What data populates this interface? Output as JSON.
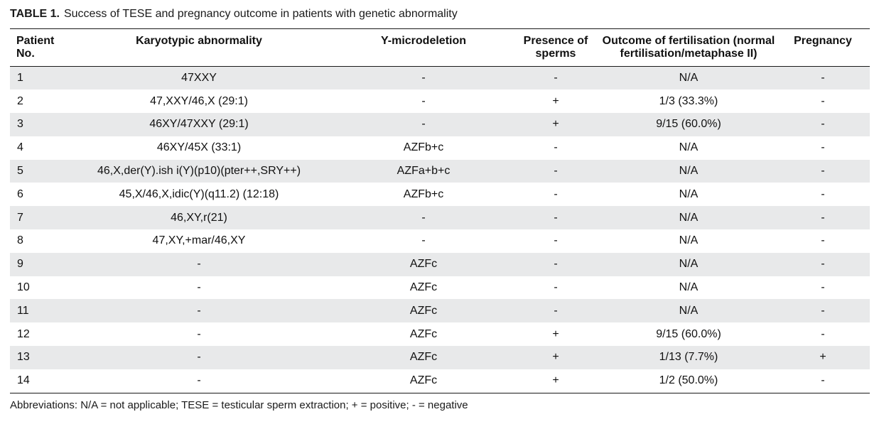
{
  "caption": {
    "label": "TABLE 1.",
    "text": "Success of TESE and pregnancy outcome in patients with genetic abnormality"
  },
  "headers": {
    "patient_line1": "Patient",
    "patient_line2": "No.",
    "karyotype": "Karyotypic abnormality",
    "ymicro": "Y-microdeletion",
    "sperm_line1": "Presence of",
    "sperm_line2": "sperms",
    "outcome_line1": "Outcome of fertilisation (normal",
    "outcome_line2": "fertilisation/metaphase II)",
    "pregnancy": "Pregnancy"
  },
  "rows": [
    {
      "no": "1",
      "karyotype": "47XXY",
      "ymicro": "-",
      "sperm": "-",
      "outcome": "N/A",
      "pregnancy": "-"
    },
    {
      "no": "2",
      "karyotype": "47,XXY/46,X (29:1)",
      "ymicro": "-",
      "sperm": "+",
      "outcome": "1/3 (33.3%)",
      "pregnancy": "-"
    },
    {
      "no": "3",
      "karyotype": "46XY/47XXY (29:1)",
      "ymicro": "-",
      "sperm": "+",
      "outcome": "9/15 (60.0%)",
      "pregnancy": "-"
    },
    {
      "no": "4",
      "karyotype": "46XY/45X (33:1)",
      "ymicro": "AZFb+c",
      "sperm": "-",
      "outcome": "N/A",
      "pregnancy": "-"
    },
    {
      "no": "5",
      "karyotype": "46,X,der(Y).ish i(Y)(p10)(pter++,SRY++)",
      "ymicro": "AZFa+b+c",
      "sperm": "-",
      "outcome": "N/A",
      "pregnancy": "-"
    },
    {
      "no": "6",
      "karyotype": "45,X/46,X,idic(Y)(q11.2) (12:18)",
      "ymicro": "AZFb+c",
      "sperm": "-",
      "outcome": "N/A",
      "pregnancy": "-"
    },
    {
      "no": "7",
      "karyotype": "46,XY,r(21)",
      "ymicro": "-",
      "sperm": "-",
      "outcome": "N/A",
      "pregnancy": "-"
    },
    {
      "no": "8",
      "karyotype": "47,XY,+mar/46,XY",
      "ymicro": "-",
      "sperm": "-",
      "outcome": "N/A",
      "pregnancy": "-"
    },
    {
      "no": "9",
      "karyotype": "-",
      "ymicro": "AZFc",
      "sperm": "-",
      "outcome": "N/A",
      "pregnancy": "-"
    },
    {
      "no": "10",
      "karyotype": "-",
      "ymicro": "AZFc",
      "sperm": "-",
      "outcome": "N/A",
      "pregnancy": "-"
    },
    {
      "no": "11",
      "karyotype": "-",
      "ymicro": "AZFc",
      "sperm": "-",
      "outcome": "N/A",
      "pregnancy": "-"
    },
    {
      "no": "12",
      "karyotype": "-",
      "ymicro": "AZFc",
      "sperm": "+",
      "outcome": "9/15 (60.0%)",
      "pregnancy": "-"
    },
    {
      "no": "13",
      "karyotype": "-",
      "ymicro": "AZFc",
      "sperm": "+",
      "outcome": "1/13 (7.7%)",
      "pregnancy": "+"
    },
    {
      "no": "14",
      "karyotype": "-",
      "ymicro": "AZFc",
      "sperm": "+",
      "outcome": "1/2 (50.0%)",
      "pregnancy": "-"
    }
  ],
  "footnote": "Abbreviations: N/A = not applicable; TESE = testicular sperm extraction; + = positive; - = negative",
  "colors": {
    "stripe": "#e8e9ea",
    "rule": "#1a1a1a",
    "text": "#111111"
  }
}
